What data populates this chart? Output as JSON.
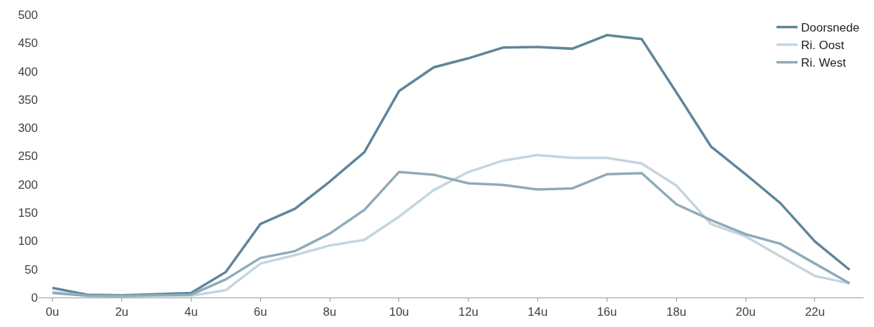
{
  "chart_data": {
    "type": "line",
    "x": [
      0,
      1,
      2,
      3,
      4,
      5,
      6,
      7,
      8,
      9,
      10,
      11,
      12,
      13,
      14,
      15,
      16,
      17,
      18,
      19,
      20,
      21,
      22,
      23
    ],
    "series": [
      {
        "name": "Doorsnede",
        "color": "#5f8599",
        "values": [
          17,
          5,
          4,
          6,
          8,
          45,
          130,
          157,
          205,
          257,
          365,
          407,
          423,
          442,
          443,
          440,
          464,
          457,
          363,
          267,
          218,
          167,
          99,
          49
        ]
      },
      {
        "name": "Ri. Oost",
        "color": "#c3d5df",
        "values": [
          10,
          3,
          2,
          3,
          3,
          13,
          60,
          75,
          92,
          102,
          143,
          190,
          222,
          242,
          252,
          247,
          247,
          237,
          198,
          130,
          108,
          73,
          38,
          25
        ]
      },
      {
        "name": "Ri. West",
        "color": "#8eabb9",
        "values": [
          8,
          3,
          3,
          4,
          5,
          32,
          70,
          82,
          113,
          155,
          222,
          217,
          202,
          199,
          191,
          193,
          218,
          220,
          165,
          137,
          112,
          95,
          60,
          25
        ]
      }
    ],
    "xlim": [
      -0.4,
      23.4
    ],
    "xticks": [
      {
        "value": 0,
        "label": "0u"
      },
      {
        "value": 2,
        "label": "2u"
      },
      {
        "value": 4,
        "label": "4u"
      },
      {
        "value": 6,
        "label": "6u"
      },
      {
        "value": 8,
        "label": "8u"
      },
      {
        "value": 10,
        "label": "10u"
      },
      {
        "value": 12,
        "label": "12u"
      },
      {
        "value": 14,
        "label": "14u"
      },
      {
        "value": 16,
        "label": "16u"
      },
      {
        "value": 18,
        "label": "18u"
      },
      {
        "value": 20,
        "label": "20u"
      },
      {
        "value": 22,
        "label": "22u"
      }
    ],
    "ylim": [
      0,
      500
    ],
    "yticks": [
      0,
      50,
      100,
      150,
      200,
      250,
      300,
      350,
      400,
      450,
      500
    ],
    "legend": "top right",
    "marker": "none",
    "line_style": "solid"
  }
}
